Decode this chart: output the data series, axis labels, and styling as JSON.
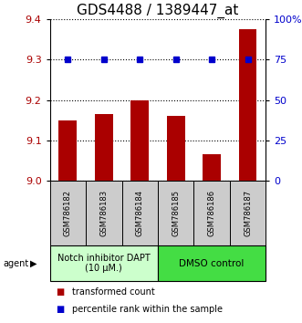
{
  "title": "GDS4488 / 1389447_at",
  "categories": [
    "GSM786182",
    "GSM786183",
    "GSM786184",
    "GSM786185",
    "GSM786186",
    "GSM786187"
  ],
  "bar_values": [
    9.15,
    9.165,
    9.2,
    9.16,
    9.065,
    9.375
  ],
  "percentile_values": [
    75,
    75,
    75,
    75,
    75,
    75
  ],
  "bar_color": "#aa0000",
  "dot_color": "#0000cc",
  "ylim_left": [
    9.0,
    9.4
  ],
  "ylim_right": [
    0,
    100
  ],
  "yticks_left": [
    9.0,
    9.1,
    9.2,
    9.3,
    9.4
  ],
  "yticks_right": [
    0,
    25,
    50,
    75,
    100
  ],
  "group1_label": "Notch inhibitor DAPT\n(10 μM.)",
  "group2_label": "DMSO control",
  "group1_color": "#ccffcc",
  "group2_color": "#44dd44",
  "sample_box_color": "#cccccc",
  "agent_label": "agent",
  "legend_bar_label": "transformed count",
  "legend_dot_label": "percentile rank within the sample",
  "bar_width": 0.5,
  "background_color": "#ffffff",
  "title_fontsize": 11,
  "tick_fontsize": 8,
  "label_fontsize": 7,
  "group_fontsize": 7,
  "legend_fontsize": 7
}
